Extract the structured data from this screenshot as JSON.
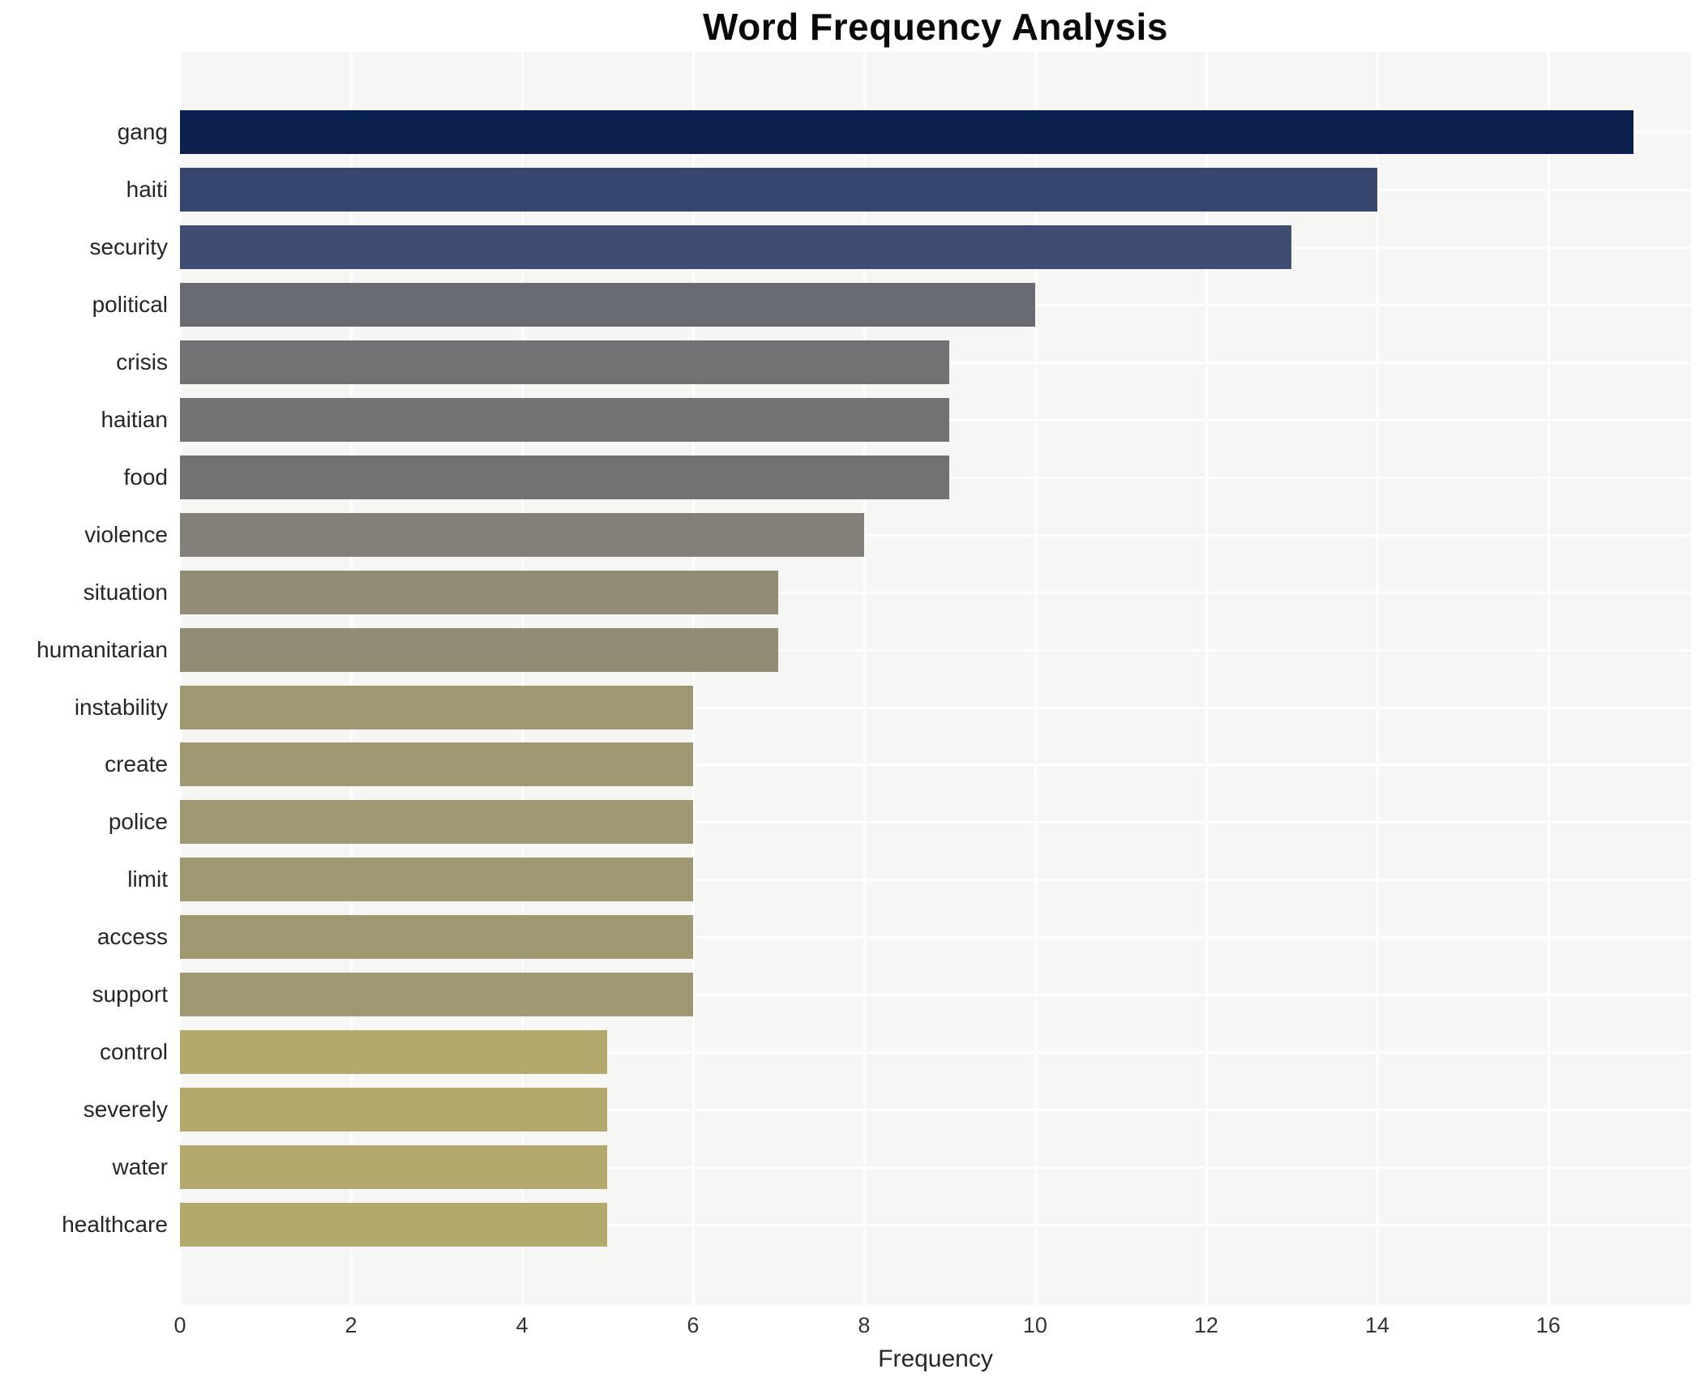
{
  "title": "Word Frequency Analysis",
  "chart_data": {
    "type": "bar",
    "orientation": "horizontal",
    "title": "Word Frequency Analysis",
    "xlabel": "Frequency",
    "ylabel": "",
    "categories": [
      "gang",
      "haiti",
      "security",
      "political",
      "crisis",
      "haitian",
      "food",
      "violence",
      "situation",
      "humanitarian",
      "instability",
      "create",
      "police",
      "limit",
      "access",
      "support",
      "control",
      "severely",
      "water",
      "healthcare"
    ],
    "values": [
      17,
      14,
      13,
      10,
      9,
      9,
      9,
      8,
      7,
      7,
      6,
      6,
      6,
      6,
      6,
      6,
      5,
      5,
      5,
      5
    ],
    "bar_colors": [
      "#0a2150",
      "#36466f",
      "#404d72",
      "#696b72",
      "#727274",
      "#727274",
      "#727274",
      "#838079",
      "#938c75",
      "#938c75",
      "#9f9873",
      "#9f9873",
      "#9f9873",
      "#9f9873",
      "#9f9873",
      "#9f9873",
      "#b3a96c",
      "#b3a96c",
      "#b3a96c",
      "#b3a96c"
    ],
    "xlim": [
      0,
      17.67
    ],
    "xticks": [
      0,
      2,
      4,
      6,
      8,
      10,
      12,
      14,
      16
    ],
    "grid": true,
    "legend_visible": false,
    "plot_bg": "#f6f6f5",
    "grid_color": "#ffffff"
  }
}
